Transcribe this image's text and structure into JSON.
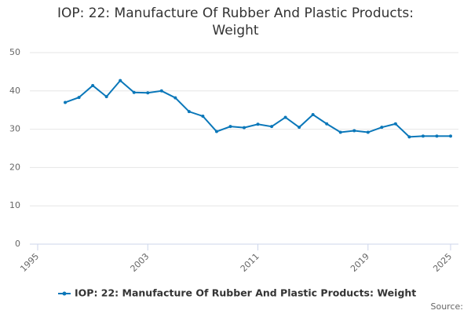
{
  "chart_data": {
    "type": "line",
    "title": "IOP: 22: Manufacture Of Rubber And Plastic Products: Weight",
    "x": [
      1997,
      1998,
      1999,
      2000,
      2001,
      2002,
      2003,
      2004,
      2005,
      2006,
      2007,
      2008,
      2009,
      2010,
      2011,
      2012,
      2013,
      2014,
      2015,
      2016,
      2017,
      2018,
      2019,
      2020,
      2021,
      2022,
      2023,
      2024,
      2025
    ],
    "series": [
      {
        "name": "IOP: 22: Manufacture Of Rubber And Plastic Products: Weight",
        "color": "#0a77b9",
        "values": [
          37,
          38.3,
          41.4,
          38.5,
          42.7,
          39.6,
          39.5,
          40,
          38.2,
          34.6,
          33.4,
          29.4,
          30.7,
          30.4,
          31.3,
          30.7,
          33.1,
          30.5,
          33.8,
          31.4,
          29.2,
          29.6,
          29.2,
          30.5,
          31.4,
          28,
          28.2,
          28.2,
          28.2
        ]
      }
    ],
    "xlim": [
      1995,
      2025
    ],
    "xticks": [
      1995,
      2003,
      2011,
      2019,
      2025
    ],
    "ylim": [
      0,
      50
    ],
    "yticks": [
      0,
      10,
      20,
      30,
      40,
      50
    ],
    "grid": true,
    "legend": "bottom",
    "source": "Source:"
  }
}
